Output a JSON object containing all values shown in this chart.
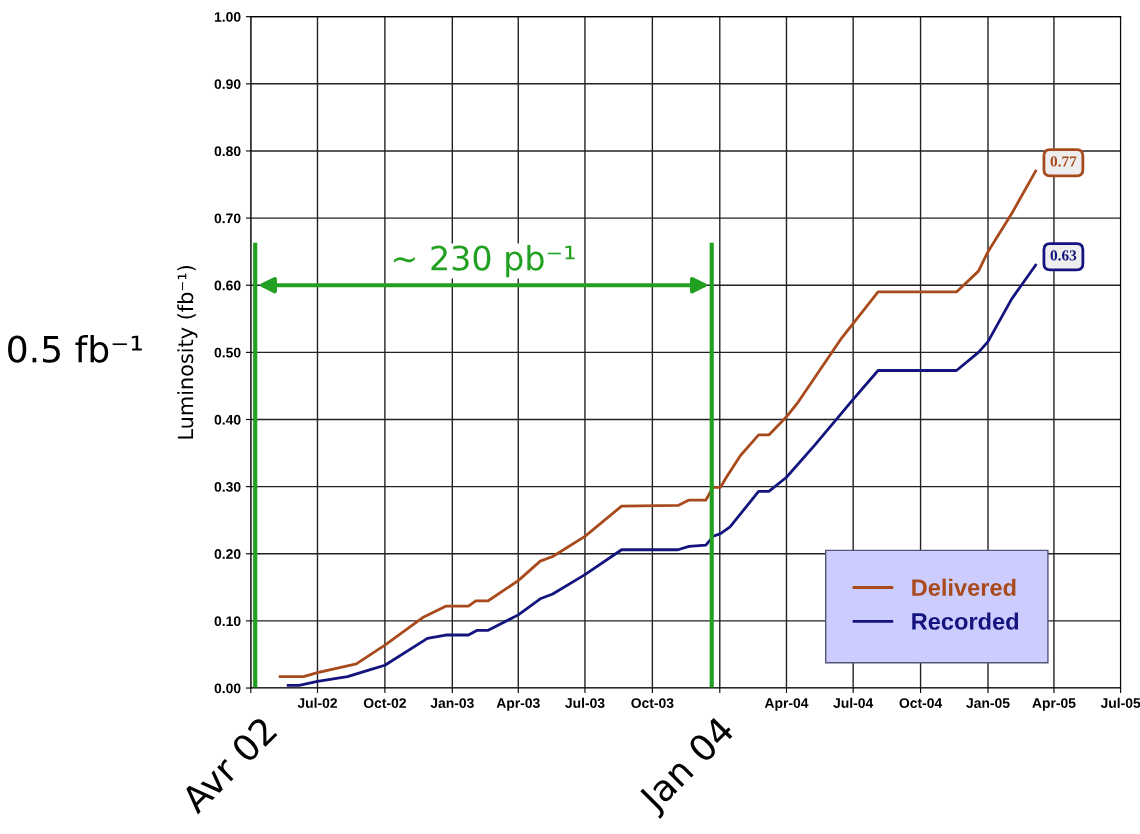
{
  "chart_data": {
    "type": "line",
    "ylabel": "Luminosity (fb⁻¹)",
    "series": [
      {
        "name": "Delivered",
        "color": "#a84a1c",
        "x": [
          "2002-05-11",
          "2002-06-12",
          "2002-07-01",
          "2002-08-23",
          "2002-10-01",
          "2002-11-23",
          "2002-12-23",
          "2003-01-23",
          "2003-02-02",
          "2003-02-19",
          "2003-04-01",
          "2003-05-01",
          "2003-05-18",
          "2003-07-01",
          "2003-08-20",
          "2003-11-05",
          "2003-11-20",
          "2003-12-13",
          "2003-12-23",
          "2004-01-02",
          "2004-01-10",
          "2004-01-29",
          "2004-02-23",
          "2004-03-08",
          "2004-04-01",
          "2004-04-17",
          "2004-06-15",
          "2004-08-04",
          "2004-11-19",
          "2004-12-19",
          "2005-01-01",
          "2005-02-02",
          "2005-03-07"
        ],
        "values": [
          0.017,
          0.017,
          0.023,
          0.036,
          0.064,
          0.106,
          0.122,
          0.122,
          0.13,
          0.13,
          0.16,
          0.189,
          0.196,
          0.226,
          0.271,
          0.272,
          0.28,
          0.28,
          0.299,
          0.299,
          0.314,
          0.346,
          0.377,
          0.377,
          0.404,
          0.426,
          0.521,
          0.59,
          0.59,
          0.621,
          0.65,
          0.706,
          0.77
        ],
        "value_labels": [
          null,
          null,
          null,
          null,
          null,
          null,
          null,
          null,
          null,
          null,
          null,
          null,
          null,
          null,
          null,
          null,
          null,
          null,
          null,
          null,
          null,
          null,
          null,
          null,
          null,
          null,
          null,
          null,
          null,
          null,
          null,
          null,
          "0.77"
        ]
      },
      {
        "name": "Recorded",
        "color": "#14147e",
        "x": [
          "2002-05-22",
          "2002-06-06",
          "2002-07-01",
          "2002-08-11",
          "2002-09-10",
          "2002-10-01",
          "2002-11-28",
          "2002-12-23",
          "2003-01-23",
          "2003-02-04",
          "2003-02-19",
          "2003-04-01",
          "2003-05-01",
          "2003-05-18",
          "2003-07-01",
          "2003-08-20",
          "2003-11-05",
          "2003-11-20",
          "2003-12-13",
          "2003-12-23",
          "2004-01-02",
          "2004-01-15",
          "2004-02-23",
          "2004-03-08",
          "2004-04-01",
          "2004-05-09",
          "2004-06-15",
          "2004-07-01",
          "2004-08-04",
          "2004-11-19",
          "2004-12-19",
          "2005-01-01",
          "2005-02-02",
          "2005-03-07"
        ],
        "values": [
          0.004,
          0.004,
          0.01,
          0.017,
          0.027,
          0.034,
          0.074,
          0.079,
          0.079,
          0.086,
          0.086,
          0.109,
          0.133,
          0.14,
          0.169,
          0.206,
          0.206,
          0.211,
          0.213,
          0.226,
          0.23,
          0.24,
          0.293,
          0.293,
          0.314,
          0.361,
          0.409,
          0.43,
          0.473,
          0.473,
          0.5,
          0.516,
          0.579,
          0.63
        ],
        "value_labels": [
          null,
          null,
          null,
          null,
          null,
          null,
          null,
          null,
          null,
          null,
          null,
          null,
          null,
          null,
          null,
          null,
          null,
          null,
          null,
          null,
          null,
          null,
          null,
          null,
          null,
          null,
          null,
          null,
          null,
          null,
          null,
          null,
          null,
          "0.63"
        ]
      }
    ],
    "xlim": [
      "2002-04-01",
      "2005-07-01"
    ],
    "xticks": [
      {
        "value": "2002-04-01",
        "label": null
      },
      {
        "value": "2002-07-01",
        "label": "Jul-02"
      },
      {
        "value": "2002-10-01",
        "label": "Oct-02"
      },
      {
        "value": "2003-01-01",
        "label": "Jan-03"
      },
      {
        "value": "2003-04-01",
        "label": "Apr-03"
      },
      {
        "value": "2003-07-01",
        "label": "Jul-03"
      },
      {
        "value": "2003-10-01",
        "label": "Oct-03"
      },
      {
        "value": "2004-01-01",
        "label": null
      },
      {
        "value": "2004-04-01",
        "label": "Apr-04"
      },
      {
        "value": "2004-07-01",
        "label": "Jul-04"
      },
      {
        "value": "2004-10-01",
        "label": "Oct-04"
      },
      {
        "value": "2005-01-01",
        "label": "Jan-05"
      },
      {
        "value": "2005-04-01",
        "label": "Apr-05"
      },
      {
        "value": "2005-07-01",
        "label": "Jul-05"
      }
    ],
    "ylim": [
      0,
      1
    ],
    "yticks": [
      {
        "value": 0,
        "label": "0.00"
      },
      {
        "value": 0.1,
        "label": "0.10"
      },
      {
        "value": 0.2,
        "label": "0.20"
      },
      {
        "value": 0.3,
        "label": "0.30"
      },
      {
        "value": 0.4,
        "label": "0.40"
      },
      {
        "value": 0.5,
        "label": "0.50"
      },
      {
        "value": 0.6,
        "label": "0.60"
      },
      {
        "value": 0.7,
        "label": "0.70"
      },
      {
        "value": 0.8,
        "label": "0.80"
      },
      {
        "value": 0.9,
        "label": "0.90"
      },
      {
        "value": 1,
        "label": "1.00"
      }
    ],
    "ref_lines": [
      {
        "axis": "x",
        "value": "2002-04-07",
        "label": "Avr 02",
        "color": "#22a022"
      },
      {
        "axis": "x",
        "value": "2003-12-21",
        "label": "Jan 04",
        "color": "#22a022"
      }
    ],
    "annotations": [
      "~ 230 pb⁻¹",
      "0.5 fb⁻¹"
    ],
    "grid": true,
    "legend": "bottom right",
    "marker": "none",
    "line_style": "solid"
  }
}
